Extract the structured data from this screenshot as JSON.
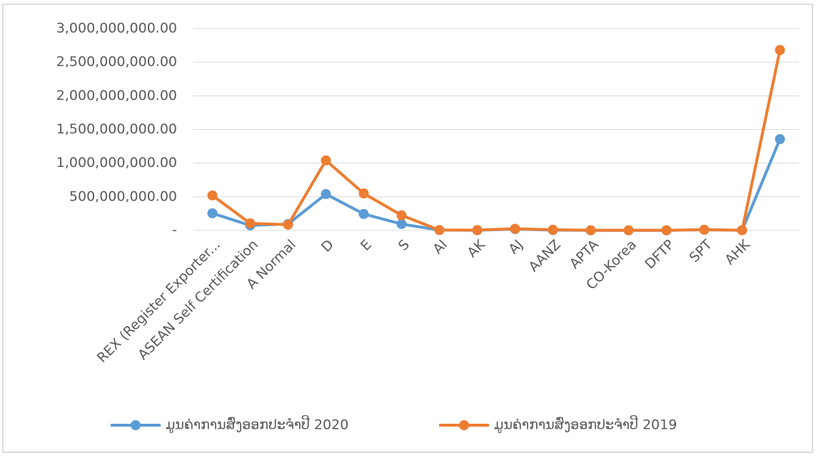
{
  "chart_data": {
    "type": "line",
    "categories": [
      "REX (Register Exporter...",
      "ASEAN Self Certification",
      "A Normal",
      "D",
      "E",
      "S",
      "AI",
      "AK",
      "AJ",
      "AANZ",
      "APTA",
      "CO-Korea",
      "DFTP",
      "SPT",
      "AHK",
      null
    ],
    "series": [
      {
        "name": "ມູນຄ່າການສົ່ງອອກປະຈຳປີ 2020",
        "color": "#5b9bd5",
        "values": [
          255000000,
          75000000,
          95000000,
          540000000,
          245000000,
          95000000,
          5000000,
          2000000,
          20000000,
          5000000,
          1000000,
          1000000,
          1000000,
          10000000,
          2000000,
          1357000000
        ]
      },
      {
        "name": "ມູນຄ່າການສົ່ງອອກປະຈຳປີ 2019",
        "color": "#ed7d31",
        "values": [
          520000000,
          105000000,
          85000000,
          1040000000,
          550000000,
          225000000,
          5000000,
          5000000,
          25000000,
          10000000,
          2000000,
          2000000,
          2000000,
          10000000,
          3000000,
          2680000000
        ]
      }
    ],
    "ylim": [
      0,
      3000000000
    ],
    "yticks": [
      {
        "value": 0,
        "label": "-"
      },
      {
        "value": 500000000,
        "label": "500,000,000.00"
      },
      {
        "value": 1000000000,
        "label": "1,000,000,000.00"
      },
      {
        "value": 1500000000,
        "label": "1,500,000,000.00"
      },
      {
        "value": 2000000000,
        "label": "2,000,000,000.00"
      },
      {
        "value": 2500000000,
        "label": "2,500,000,000.00"
      },
      {
        "value": 3000000000,
        "label": "3,000,000,000.00"
      }
    ],
    "grid": true,
    "legend": "bottom"
  }
}
